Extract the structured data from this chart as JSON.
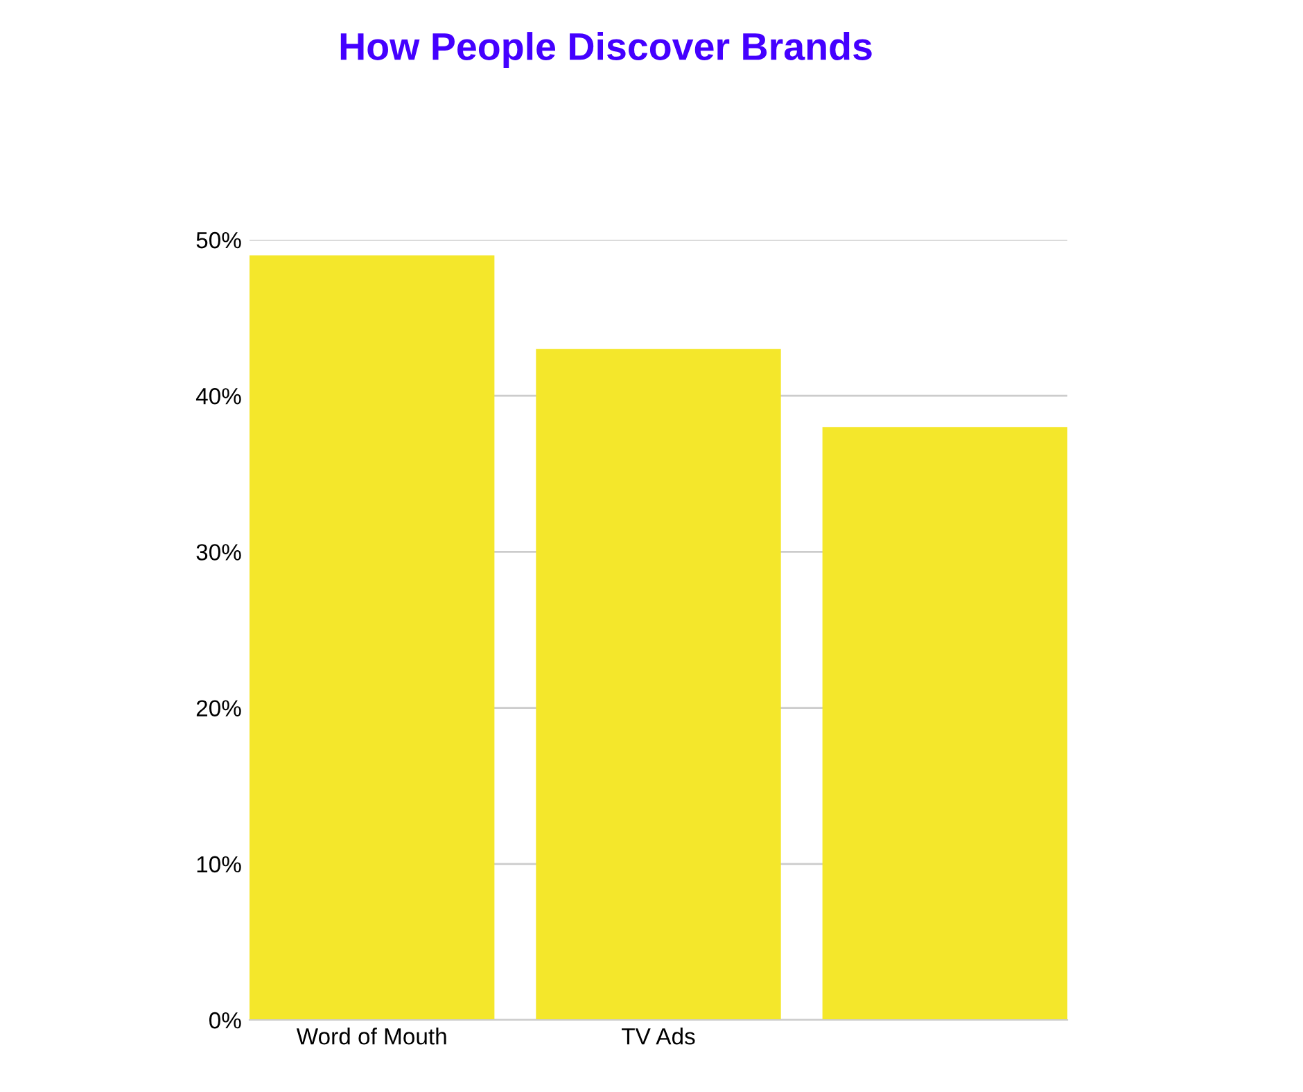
{
  "chart_data": {
    "type": "bar",
    "title": "How People Discover Brands",
    "categories": [
      "Word of Mouth",
      "TV Ads",
      null
    ],
    "values": [
      49,
      43,
      38
    ],
    "color": "#f4e72b",
    "ylim": [
      0,
      50
    ],
    "yticks": [
      {
        "value": 0,
        "label": "0%"
      },
      {
        "value": 10,
        "label": "10%"
      },
      {
        "value": 20,
        "label": "20%"
      },
      {
        "value": 30,
        "label": "30%"
      },
      {
        "value": 40,
        "label": "40%"
      },
      {
        "value": 50,
        "label": "50%"
      }
    ],
    "grid": "y"
  }
}
